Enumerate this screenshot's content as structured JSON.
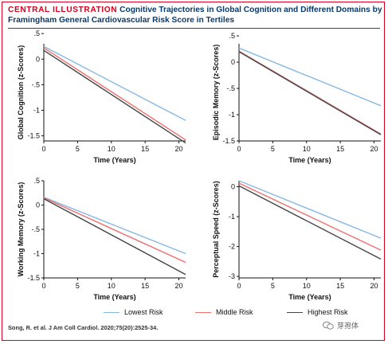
{
  "header": {
    "label": "CENTRAL ILLUSTRATION",
    "title": "Cognitive Trajectories in Global Cognition and Different Domains by",
    "title_line2": "Framingham General Cardiovascular Risk Score in Tertiles"
  },
  "legend": {
    "items": [
      {
        "label": "Lowest Risk",
        "color": "#86b8e1"
      },
      {
        "label": "Middle Risk",
        "color": "#ef6e6e"
      },
      {
        "label": "Highest Risk",
        "color": "#444444"
      }
    ]
  },
  "citation": "Song, R. et al. J Am Coll Cardiol. 2020;75(20):2525-34.",
  "watermark": "芽孢体",
  "chart_data": [
    {
      "type": "line",
      "xlabel": "Time (Years)",
      "ylabel": "Global Cognition (z-Scores)",
      "xlim": [
        0,
        21
      ],
      "ylim": [
        -1.6,
        0.3
      ],
      "xticks": [
        0,
        5,
        10,
        15,
        20
      ],
      "xtick_labels": [
        "0",
        "5",
        "10",
        "15",
        "20"
      ],
      "yticks": [
        0.5,
        0,
        -0.5,
        -1,
        -1.5
      ],
      "ytick_labels": [
        ".5",
        "0",
        "-.5",
        "-1",
        "-1.5"
      ],
      "series": [
        {
          "name": "Lowest Risk",
          "color": "#86b8e1",
          "x": [
            0,
            21
          ],
          "y": [
            0.25,
            -1.2
          ]
        },
        {
          "name": "Middle Risk",
          "color": "#ef6e6e",
          "x": [
            0,
            21
          ],
          "y": [
            0.22,
            -1.58
          ]
        },
        {
          "name": "Highest Risk",
          "color": "#444444",
          "x": [
            0,
            21
          ],
          "y": [
            0.17,
            -1.64
          ]
        }
      ]
    },
    {
      "type": "line",
      "xlabel": "Time (Years)",
      "ylabel": "Episodic Memory (z-Scores)",
      "xlim": [
        0,
        21
      ],
      "ylim": [
        -1.5,
        0.35
      ],
      "xticks": [
        0,
        5,
        10,
        15,
        20
      ],
      "xtick_labels": [
        "0",
        "5",
        "10",
        "15",
        "20"
      ],
      "yticks": [
        0.5,
        0,
        -0.5,
        -1,
        -1.5
      ],
      "ytick_labels": [
        ".5",
        "0",
        "-.5",
        "-1",
        "-1.5"
      ],
      "series": [
        {
          "name": "Lowest Risk",
          "color": "#86b8e1",
          "x": [
            0,
            21
          ],
          "y": [
            0.27,
            -0.83
          ]
        },
        {
          "name": "Middle Risk",
          "color": "#ef6e6e",
          "x": [
            0,
            21
          ],
          "y": [
            0.21,
            -1.37
          ]
        },
        {
          "name": "Highest Risk",
          "color": "#444444",
          "x": [
            0,
            21
          ],
          "y": [
            0.2,
            -1.38
          ]
        }
      ]
    },
    {
      "type": "line",
      "xlabel": "Time (Years)",
      "ylabel": "Working Memory (z-Scores)",
      "xlim": [
        0,
        21
      ],
      "ylim": [
        -1.5,
        0.5
      ],
      "xticks": [
        0,
        5,
        10,
        15,
        20
      ],
      "xtick_labels": [
        "0",
        "5",
        "10",
        "15",
        "20"
      ],
      "yticks": [
        0.5,
        0,
        -0.5,
        -1,
        -1.5
      ],
      "ytick_labels": [
        ".5",
        "0",
        "-.5",
        "-1",
        "-1.5"
      ],
      "series": [
        {
          "name": "Lowest Risk",
          "color": "#86b8e1",
          "x": [
            0,
            21
          ],
          "y": [
            0.16,
            -1.0
          ]
        },
        {
          "name": "Middle Risk",
          "color": "#ef6e6e",
          "x": [
            0,
            21
          ],
          "y": [
            0.15,
            -1.18
          ]
        },
        {
          "name": "Highest Risk",
          "color": "#444444",
          "x": [
            0,
            21
          ],
          "y": [
            0.13,
            -1.43
          ]
        }
      ]
    },
    {
      "type": "line",
      "xlabel": "Time (Years)",
      "ylabel": "Perceptual Speed (z-Scores)",
      "xlim": [
        0,
        21
      ],
      "ylim": [
        -3.05,
        0.2
      ],
      "xticks": [
        0,
        5,
        10,
        15,
        20
      ],
      "xtick_labels": [
        "0",
        "5",
        "10",
        "15",
        "20"
      ],
      "yticks": [
        0,
        -1,
        -2,
        -3
      ],
      "ytick_labels": [
        "0",
        "-1",
        "-2",
        "-3"
      ],
      "series": [
        {
          "name": "Lowest Risk",
          "color": "#86b8e1",
          "x": [
            0,
            21
          ],
          "y": [
            0.2,
            -1.72
          ]
        },
        {
          "name": "Middle Risk",
          "color": "#ef6e6e",
          "x": [
            0,
            21
          ],
          "y": [
            0.12,
            -2.12
          ]
        },
        {
          "name": "Highest Risk",
          "color": "#444444",
          "x": [
            0,
            21
          ],
          "y": [
            0.03,
            -2.42
          ]
        }
      ]
    }
  ]
}
